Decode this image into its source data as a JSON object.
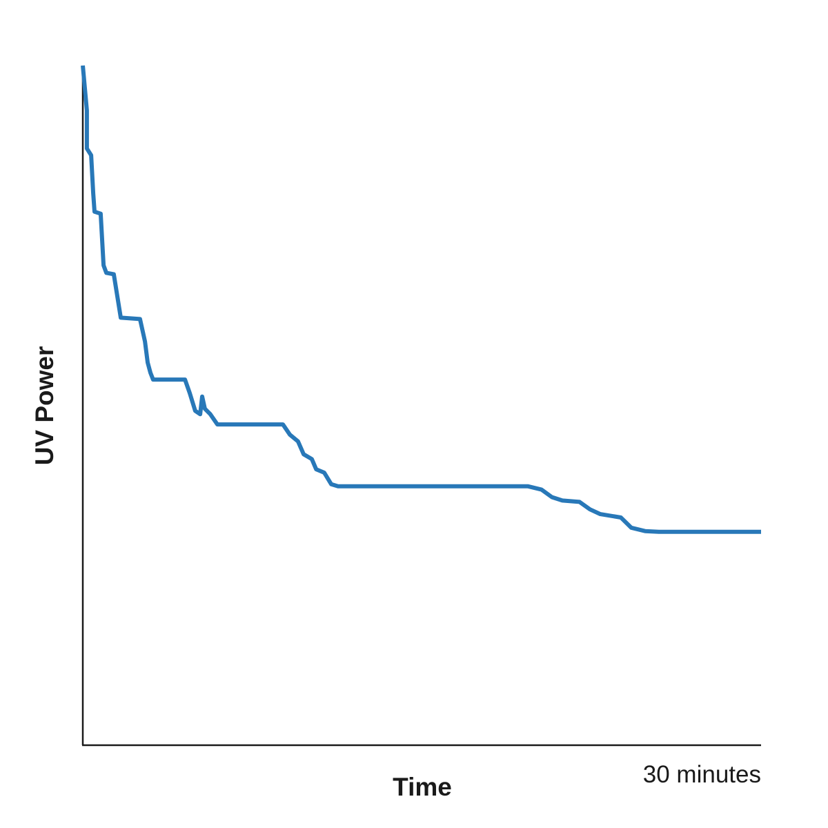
{
  "chart_data": {
    "type": "line",
    "x_label": "Time",
    "y_label": "UV Power",
    "x": [
      0,
      0.18,
      0.18,
      0.37,
      0.46,
      0.52,
      0.79,
      0.92,
      1.04,
      1.37,
      1.68,
      2.53,
      2.75,
      2.87,
      2.99,
      3.11,
      4.52,
      4.73,
      4.97,
      5.19,
      5.28,
      5.4,
      5.64,
      5.95,
      8.85,
      9.16,
      9.52,
      9.77,
      10.13,
      10.32,
      10.68,
      10.99,
      11.29,
      19.68,
      20.29,
      20.75,
      21.21,
      21.97,
      22.43,
      22.89,
      23.8,
      24.26,
      24.87,
      25.48,
      30
    ],
    "values": [
      100,
      93.4,
      87.8,
      86.8,
      81.2,
      78.5,
      78.2,
      70.6,
      69.5,
      69.3,
      62.9,
      62.7,
      59.4,
      56.3,
      54.8,
      53.8,
      53.8,
      51.8,
      49.2,
      48.7,
      51.3,
      49.5,
      48.7,
      47.2,
      47.2,
      45.7,
      44.7,
      42.8,
      42.1,
      40.6,
      40.1,
      38.4,
      38.1,
      38.1,
      37.6,
      36.5,
      36,
      35.8,
      34.7,
      34,
      33.5,
      32,
      31.5,
      31.4,
      31.4
    ],
    "color": "#2878b8",
    "xlim": [
      0,
      30
    ],
    "ylim": [
      0,
      100
    ],
    "xticks": [
      {
        "value": 30,
        "label": "30 minutes"
      }
    ]
  }
}
